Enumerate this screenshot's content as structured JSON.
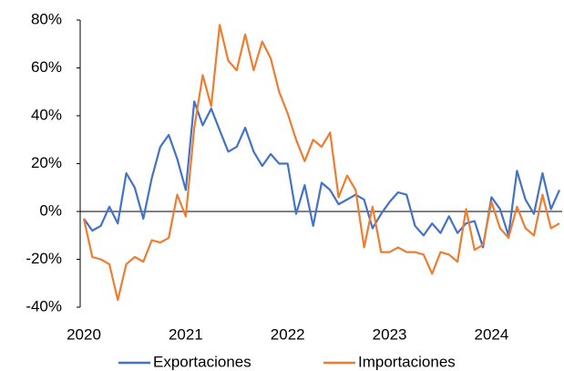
{
  "chart_data": {
    "type": "line",
    "categories": [
      "2020",
      null,
      null,
      null,
      null,
      null,
      null,
      null,
      null,
      null,
      null,
      null,
      "2021",
      null,
      null,
      null,
      null,
      null,
      null,
      null,
      null,
      null,
      null,
      null,
      "2022",
      null,
      null,
      null,
      null,
      null,
      null,
      null,
      null,
      null,
      null,
      null,
      "2023",
      null,
      null,
      null,
      null,
      null,
      null,
      null,
      null,
      null,
      null,
      null,
      "2024",
      null,
      null,
      null,
      null,
      null,
      null,
      null,
      null
    ],
    "series": [
      {
        "name": "Exportaciones",
        "color": "#4472c4",
        "values": [
          -3,
          -8,
          -6,
          2,
          -5,
          16,
          10,
          -3,
          14,
          27,
          32,
          22,
          9,
          46,
          36,
          43,
          34,
          25,
          27,
          35,
          25,
          19,
          24,
          20,
          20,
          -1,
          11,
          -6,
          12,
          9,
          3,
          5,
          7,
          5,
          -7,
          -1,
          4,
          8,
          7,
          -6,
          -10,
          -5,
          -9,
          -2,
          -9,
          -5,
          -4,
          -15,
          6,
          1,
          -10,
          17,
          5,
          -1,
          16,
          1,
          9
        ]
      },
      {
        "name": "Importaciones",
        "color": "#ed7d31",
        "values": [
          -3,
          -19,
          -20,
          -22,
          -37,
          -22,
          -19,
          -21,
          -12,
          -13,
          -11,
          7,
          -2,
          35,
          57,
          44,
          78,
          63,
          59,
          74,
          59,
          71,
          64,
          50,
          41,
          30,
          21,
          30,
          27,
          33,
          6,
          15,
          9,
          -15,
          2,
          -17,
          -17,
          -15,
          -17,
          -17,
          -18,
          -26,
          -17,
          -18,
          -21,
          1,
          -16,
          -14,
          4,
          -7,
          -11,
          2,
          -7,
          -10,
          7,
          -7,
          -5
        ]
      }
    ],
    "ylim": [
      -40,
      80
    ],
    "yticks": [
      {
        "value": -40,
        "label": "-40%"
      },
      {
        "value": -20,
        "label": "-20%"
      },
      {
        "value": 0,
        "label": "0%"
      },
      {
        "value": 20,
        "label": "20%"
      },
      {
        "value": 40,
        "label": "40%"
      },
      {
        "value": 60,
        "label": "60%"
      },
      {
        "value": 80,
        "label": "80%"
      }
    ],
    "grid": false,
    "legend": "bottom"
  }
}
